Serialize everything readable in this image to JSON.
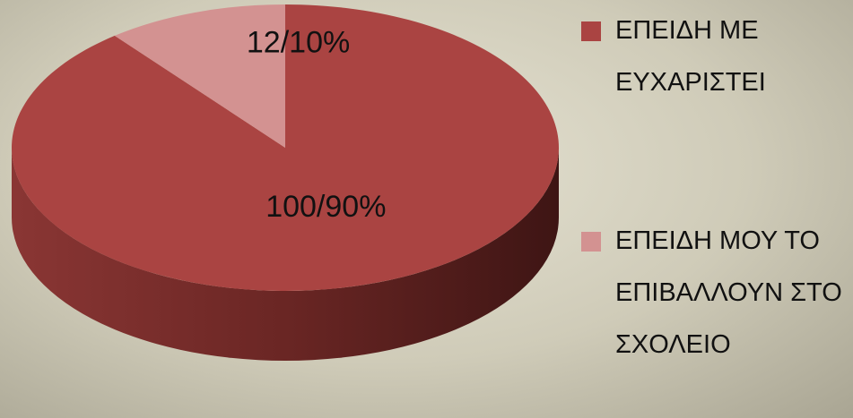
{
  "chart_data": {
    "type": "pie",
    "series": [
      {
        "name": "ΕΠΕΙΔΗ ΜΕ ΕΥΧΑΡΙΣΤΕΙ",
        "color": "#aa4442",
        "values": [
          100
        ],
        "value_labels": [
          "100/90%"
        ]
      },
      {
        "name": "ΕΠΕΙΔΗ ΜΟΥ ΤΟ ΕΠΙΒΑΛΛΟΥΝ ΣΤΟ ΣΧΟΛΕΙΟ",
        "color": "#d39291",
        "values": [
          12
        ],
        "value_labels": [
          "12/10%"
        ]
      }
    ],
    "legend": "right"
  }
}
